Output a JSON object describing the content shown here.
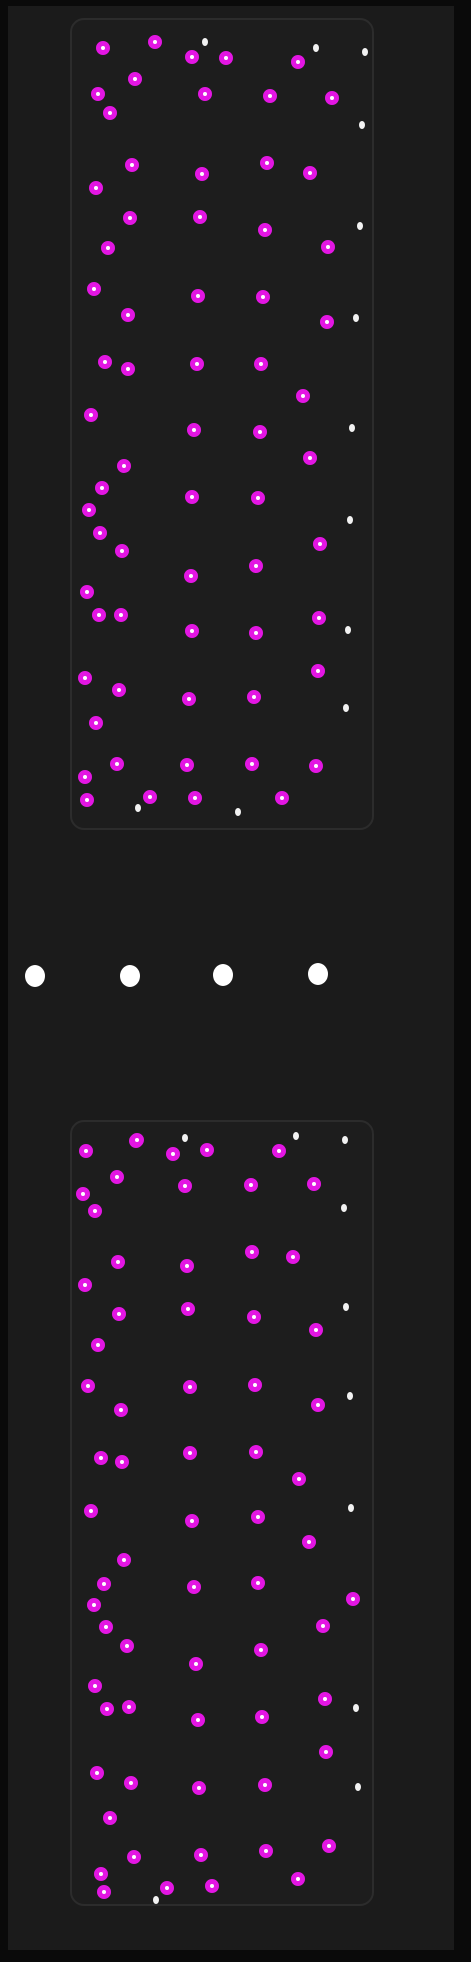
{
  "image": {
    "width": 471,
    "height": 1962,
    "colors": {
      "background": "#0a0a0a",
      "sheet": "#1b1b1b",
      "panel": "#1d1d1d",
      "panel_border": "#2c2c2c",
      "spot_ring": "#e316e3",
      "spot_center": "#ffffff",
      "marker": "#ffffff"
    },
    "regions": [
      {
        "name": "upper-panel",
        "detected_spots": 73,
        "edge_dots": 12
      },
      {
        "name": "lower-panel",
        "detected_spots": 75,
        "edge_dots": 10
      }
    ],
    "reference_markers": 4
  }
}
